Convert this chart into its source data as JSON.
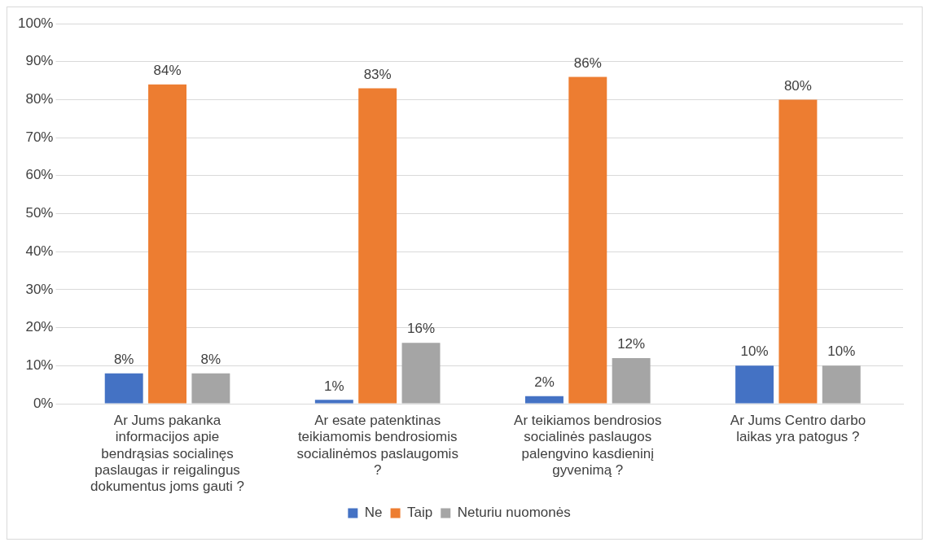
{
  "chart_data": {
    "type": "bar",
    "categories": [
      "Ar Jums pakanka informacijos apie bendrąsias socialinęs paslaugas ir reigalingus dokumentus joms gauti ?",
      "Ar esate patenktinas teikiamomis bendrosiomis socialinėmos paslaugomis ?",
      "Ar teikiamos bendrosios socialinės paslaugos palengvino kasdieninį gyvenimą ?",
      "Ar Jums Centro darbo laikas yra patogus ?"
    ],
    "series": [
      {
        "name": "Ne",
        "color": "#4472c4",
        "values": [
          8,
          1,
          2,
          10
        ],
        "value_labels": [
          "8%",
          "1%",
          "2%",
          "10%"
        ]
      },
      {
        "name": "Taip",
        "color": "#ed7d31",
        "values": [
          84,
          83,
          86,
          80
        ],
        "value_labels": [
          "84%",
          "83%",
          "86%",
          "80%"
        ]
      },
      {
        "name": "Neturiu nuomonės",
        "color": "#a5a5a5",
        "values": [
          8,
          16,
          12,
          10
        ],
        "value_labels": [
          "8%",
          "16%",
          "12%",
          "10%"
        ]
      }
    ],
    "ylim": [
      0,
      100
    ],
    "yticks": [
      {
        "value": 0,
        "label": "0%"
      },
      {
        "value": 10,
        "label": "10%"
      },
      {
        "value": 20,
        "label": "20%"
      },
      {
        "value": 30,
        "label": "30%"
      },
      {
        "value": 40,
        "label": "40%"
      },
      {
        "value": 50,
        "label": "50%"
      },
      {
        "value": 60,
        "label": "60%"
      },
      {
        "value": 70,
        "label": "70%"
      },
      {
        "value": 80,
        "label": "80%"
      },
      {
        "value": 90,
        "label": "90%"
      },
      {
        "value": 100,
        "label": "100%"
      }
    ],
    "grid": "y",
    "legend": "bottom"
  }
}
